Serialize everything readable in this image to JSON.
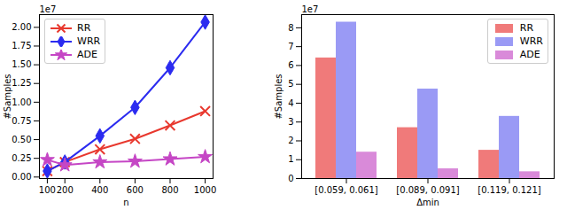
{
  "chart_data": [
    {
      "type": "line",
      "x_label": "n",
      "y_label": "#Samples",
      "annotations": [
        "1e7"
      ],
      "x": [
        100,
        200,
        400,
        600,
        800,
        1000
      ],
      "xlim": [
        55,
        1045
      ],
      "xticks": [
        100,
        200,
        400,
        600,
        800,
        1000
      ],
      "ylim": [
        -0.02,
        2.17
      ],
      "yticks": [
        {
          "value": 0,
          "label": "0.00"
        },
        {
          "value": 0.25,
          "label": "0.25"
        },
        {
          "value": 0.5,
          "label": "0.50"
        },
        {
          "value": 0.75,
          "label": "0.75"
        },
        {
          "value": 1,
          "label": "1.00"
        },
        {
          "value": 1.25,
          "label": "1.25"
        },
        {
          "value": 1.5,
          "label": "1.50"
        },
        {
          "value": 1.75,
          "label": "1.75"
        },
        {
          "value": 2,
          "label": "2.00"
        }
      ],
      "legend": "upper left",
      "series": [
        {
          "name": "RR",
          "color": "#e8382e",
          "marker": "times",
          "values": [
            0.08,
            0.2,
            0.37,
            0.51,
            0.69,
            0.88
          ]
        },
        {
          "name": "WRR",
          "color": "#2b2bf0",
          "marker": "diamond",
          "values": [
            0.08,
            0.2,
            0.55,
            0.93,
            1.46,
            2.07
          ]
        },
        {
          "name": "ADE",
          "color": "#c546c5",
          "marker": "star",
          "values": [
            0.23,
            0.16,
            0.2,
            0.21,
            0.24,
            0.27
          ]
        }
      ]
    },
    {
      "type": "bar",
      "x_label": "Δmin",
      "y_label": "#Samples",
      "annotations": [
        "1e7"
      ],
      "categories": [
        "[0.059, 0.061]",
        "[0.089, 0.091]",
        "[0.119, 0.121]"
      ],
      "ylim": [
        0,
        8.7
      ],
      "yticks": [
        0,
        1,
        2,
        3,
        4,
        5,
        6,
        7,
        8
      ],
      "legend": "upper right",
      "series": [
        {
          "name": "RR",
          "color": "#f07a7a",
          "values": [
            6.4,
            2.7,
            1.5
          ]
        },
        {
          "name": "WRR",
          "color": "#9a9af5",
          "values": [
            8.3,
            4.75,
            3.3
          ]
        },
        {
          "name": "ADE",
          "color": "#d98ad9",
          "values": [
            1.4,
            0.52,
            0.36
          ]
        }
      ]
    }
  ]
}
